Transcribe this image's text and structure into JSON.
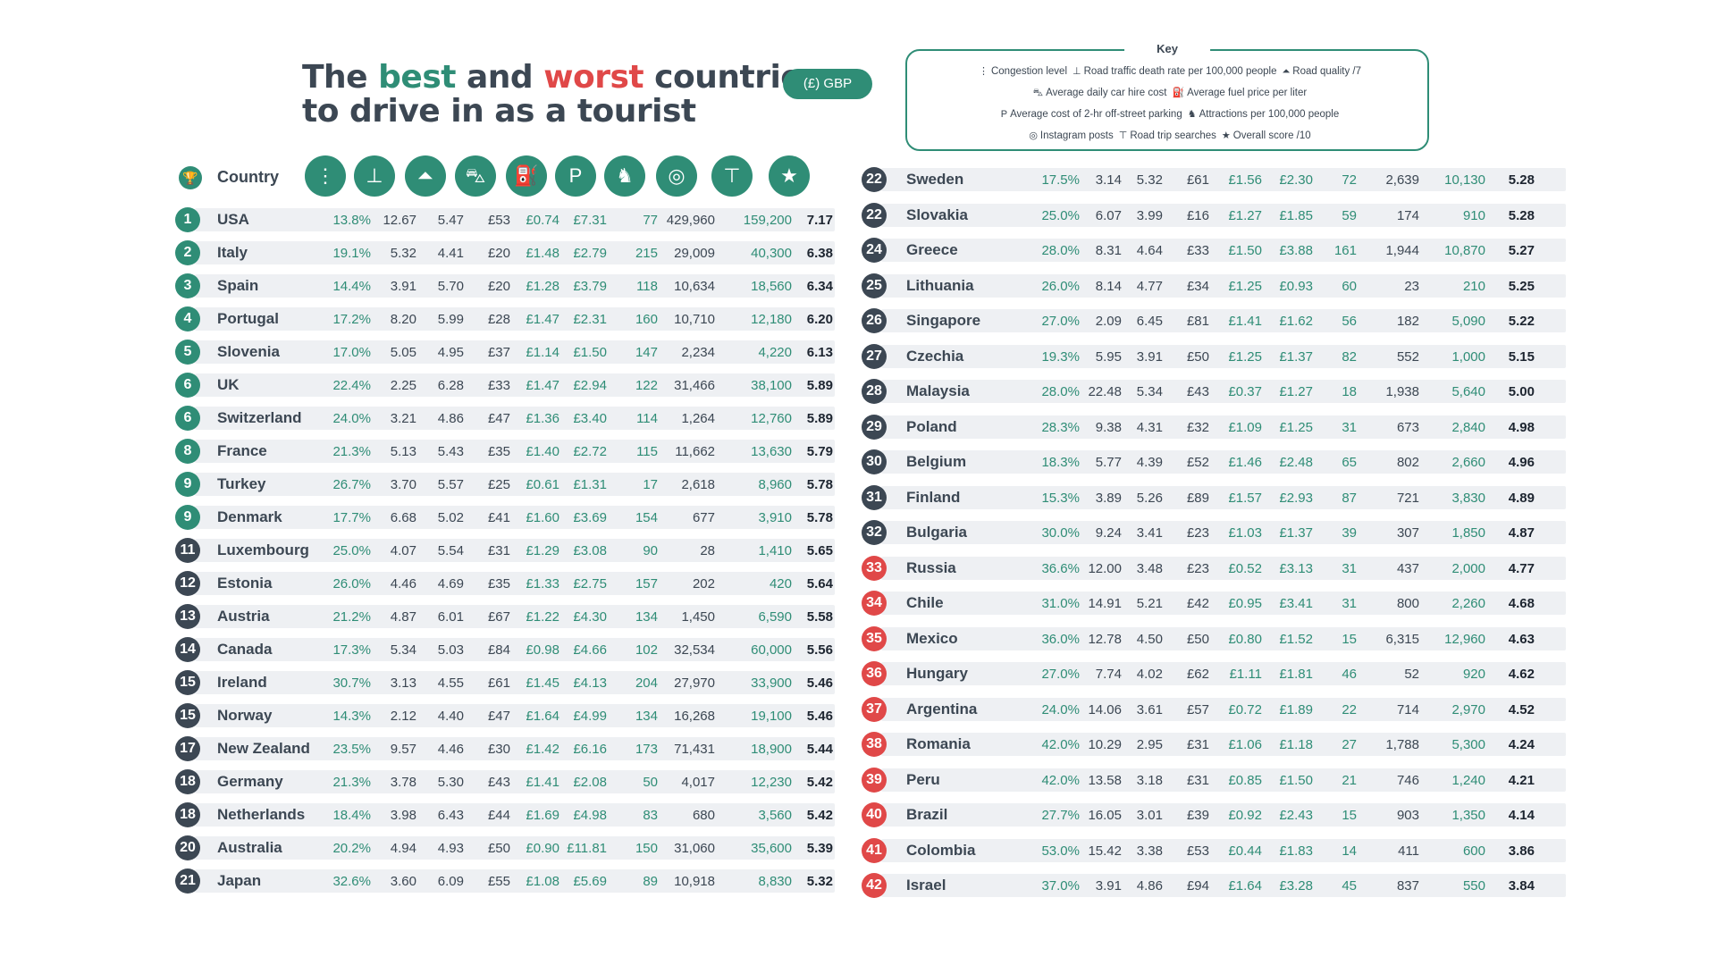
{
  "title": {
    "line1_a": "The ",
    "line1_best": "best",
    "line1_and": " and ",
    "line1_worst": "worst",
    "line1_end": " countries",
    "line2": "to drive in as a tourist"
  },
  "currency": "(£) GBP",
  "key": {
    "title": "Key",
    "items": [
      {
        "icon": "traffic-light-icon",
        "label": "Congestion level"
      },
      {
        "icon": "tombstone-icon",
        "label": "Road traffic death rate per 100,000 people"
      },
      {
        "icon": "road-icon",
        "label": "Road quality /7"
      },
      {
        "icon": "car-icon",
        "label": "Average daily car hire cost"
      },
      {
        "icon": "fuel-pump-icon",
        "label": "Average fuel price per liter"
      },
      {
        "icon": "parking-icon",
        "label": "Average cost of 2-hr off-street parking"
      },
      {
        "icon": "horse-icon",
        "label": "Attractions per 100,000 people"
      },
      {
        "icon": "instagram-icon",
        "label": "Instagram posts"
      },
      {
        "icon": "signpost-icon",
        "label": "Road trip searches"
      },
      {
        "icon": "star-icon",
        "label": "Overall score /10"
      }
    ]
  },
  "header": {
    "country_label": "Country",
    "icons": [
      "traffic-light-icon",
      "tombstone-icon",
      "road-icon",
      "car-icon",
      "fuel-pump-icon",
      "parking-icon",
      "horse-icon",
      "instagram-icon",
      "signpost-icon",
      "star-icon"
    ]
  },
  "colors": {
    "green": "#2f8d76",
    "navy": "#3c4753",
    "red": "#e04848"
  },
  "rows": [
    {
      "rank": "1",
      "country": "USA",
      "v": [
        "13.8%",
        "12.67",
        "5.47",
        "£53",
        "£0.74",
        "£7.31",
        "77",
        "429,960",
        "159,200",
        "7.17"
      ],
      "tone": "green"
    },
    {
      "rank": "2",
      "country": "Italy",
      "v": [
        "19.1%",
        "5.32",
        "4.41",
        "£20",
        "£1.48",
        "£2.79",
        "215",
        "29,009",
        "40,300",
        "6.38"
      ],
      "tone": "green"
    },
    {
      "rank": "3",
      "country": "Spain",
      "v": [
        "14.4%",
        "3.91",
        "5.70",
        "£20",
        "£1.28",
        "£3.79",
        "118",
        "10,634",
        "18,560",
        "6.34"
      ],
      "tone": "green"
    },
    {
      "rank": "4",
      "country": "Portugal",
      "v": [
        "17.2%",
        "8.20",
        "5.99",
        "£28",
        "£1.47",
        "£2.31",
        "160",
        "10,710",
        "12,180",
        "6.20"
      ],
      "tone": "green"
    },
    {
      "rank": "5",
      "country": "Slovenia",
      "v": [
        "17.0%",
        "5.05",
        "4.95",
        "£37",
        "£1.14",
        "£1.50",
        "147",
        "2,234",
        "4,220",
        "6.13"
      ],
      "tone": "green"
    },
    {
      "rank": "6",
      "country": "UK",
      "v": [
        "22.4%",
        "2.25",
        "6.28",
        "£33",
        "£1.47",
        "£2.94",
        "122",
        "31,466",
        "38,100",
        "5.89"
      ],
      "tone": "green"
    },
    {
      "rank": "6",
      "country": "Switzerland",
      "v": [
        "24.0%",
        "3.21",
        "4.86",
        "£47",
        "£1.36",
        "£3.40",
        "114",
        "1,264",
        "12,760",
        "5.89"
      ],
      "tone": "green"
    },
    {
      "rank": "8",
      "country": "France",
      "v": [
        "21.3%",
        "5.13",
        "5.43",
        "£35",
        "£1.40",
        "£2.72",
        "115",
        "11,662",
        "13,630",
        "5.79"
      ],
      "tone": "green"
    },
    {
      "rank": "9",
      "country": "Turkey",
      "v": [
        "26.7%",
        "3.70",
        "5.57",
        "£25",
        "£0.61",
        "£1.31",
        "17",
        "2,618",
        "8,960",
        "5.78"
      ],
      "tone": "green"
    },
    {
      "rank": "9",
      "country": "Denmark",
      "v": [
        "17.7%",
        "6.68",
        "5.02",
        "£41",
        "£1.60",
        "£3.69",
        "154",
        "677",
        "3,910",
        "5.78"
      ],
      "tone": "green"
    },
    {
      "rank": "11",
      "country": "Luxembourg",
      "v": [
        "25.0%",
        "4.07",
        "5.54",
        "£31",
        "£1.29",
        "£3.08",
        "90",
        "28",
        "1,410",
        "5.65"
      ],
      "tone": "navy"
    },
    {
      "rank": "12",
      "country": "Estonia",
      "v": [
        "26.0%",
        "4.46",
        "4.69",
        "£35",
        "£1.33",
        "£2.75",
        "157",
        "202",
        "420",
        "5.64"
      ],
      "tone": "navy"
    },
    {
      "rank": "13",
      "country": "Austria",
      "v": [
        "21.2%",
        "4.87",
        "6.01",
        "£67",
        "£1.22",
        "£4.30",
        "134",
        "1,450",
        "6,590",
        "5.58"
      ],
      "tone": "navy"
    },
    {
      "rank": "14",
      "country": "Canada",
      "v": [
        "17.3%",
        "5.34",
        "5.03",
        "£84",
        "£0.98",
        "£4.66",
        "102",
        "32,534",
        "60,000",
        "5.56"
      ],
      "tone": "navy"
    },
    {
      "rank": "15",
      "country": "Ireland",
      "v": [
        "30.7%",
        "3.13",
        "4.55",
        "£61",
        "£1.45",
        "£4.13",
        "204",
        "27,970",
        "33,900",
        "5.46"
      ],
      "tone": "navy"
    },
    {
      "rank": "15",
      "country": "Norway",
      "v": [
        "14.3%",
        "2.12",
        "4.40",
        "£47",
        "£1.64",
        "£4.99",
        "134",
        "16,268",
        "19,100",
        "5.46"
      ],
      "tone": "navy"
    },
    {
      "rank": "17",
      "country": "New Zealand",
      "v": [
        "23.5%",
        "9.57",
        "4.46",
        "£30",
        "£1.42",
        "£6.16",
        "173",
        "71,431",
        "18,900",
        "5.44"
      ],
      "tone": "navy"
    },
    {
      "rank": "18",
      "country": "Germany",
      "v": [
        "21.3%",
        "3.78",
        "5.30",
        "£43",
        "£1.41",
        "£2.08",
        "50",
        "4,017",
        "12,230",
        "5.42"
      ],
      "tone": "navy"
    },
    {
      "rank": "18",
      "country": "Netherlands",
      "v": [
        "18.4%",
        "3.98",
        "6.43",
        "£44",
        "£1.69",
        "£4.98",
        "83",
        "680",
        "3,560",
        "5.42"
      ],
      "tone": "navy"
    },
    {
      "rank": "20",
      "country": "Australia",
      "v": [
        "20.2%",
        "4.94",
        "4.93",
        "£50",
        "£0.90",
        "£11.81",
        "150",
        "31,060",
        "35,600",
        "5.39"
      ],
      "tone": "navy"
    },
    {
      "rank": "21",
      "country": "Japan",
      "v": [
        "32.6%",
        "3.60",
        "6.09",
        "£55",
        "£1.08",
        "£5.69",
        "89",
        "10,918",
        "8,830",
        "5.32"
      ],
      "tone": "navy"
    },
    {
      "rank": "22",
      "country": "Sweden",
      "v": [
        "17.5%",
        "3.14",
        "5.32",
        "£61",
        "£1.56",
        "£2.30",
        "72",
        "2,639",
        "10,130",
        "5.28"
      ],
      "tone": "navy"
    },
    {
      "rank": "22",
      "country": "Slovakia",
      "v": [
        "25.0%",
        "6.07",
        "3.99",
        "£16",
        "£1.27",
        "£1.85",
        "59",
        "174",
        "910",
        "5.28"
      ],
      "tone": "navy"
    },
    {
      "rank": "24",
      "country": "Greece",
      "v": [
        "28.0%",
        "8.31",
        "4.64",
        "£33",
        "£1.50",
        "£3.88",
        "161",
        "1,944",
        "10,870",
        "5.27"
      ],
      "tone": "navy"
    },
    {
      "rank": "25",
      "country": "Lithuania",
      "v": [
        "26.0%",
        "8.14",
        "4.77",
        "£34",
        "£1.25",
        "£0.93",
        "60",
        "23",
        "210",
        "5.25"
      ],
      "tone": "navy"
    },
    {
      "rank": "26",
      "country": "Singapore",
      "v": [
        "27.0%",
        "2.09",
        "6.45",
        "£81",
        "£1.41",
        "£1.62",
        "56",
        "182",
        "5,090",
        "5.22"
      ],
      "tone": "navy"
    },
    {
      "rank": "27",
      "country": "Czechia",
      "v": [
        "19.3%",
        "5.95",
        "3.91",
        "£50",
        "£1.25",
        "£1.37",
        "82",
        "552",
        "1,000",
        "5.15"
      ],
      "tone": "navy"
    },
    {
      "rank": "28",
      "country": "Malaysia",
      "v": [
        "28.0%",
        "22.48",
        "5.34",
        "£43",
        "£0.37",
        "£1.27",
        "18",
        "1,938",
        "5,640",
        "5.00"
      ],
      "tone": "navy"
    },
    {
      "rank": "29",
      "country": "Poland",
      "v": [
        "28.3%",
        "9.38",
        "4.31",
        "£32",
        "£1.09",
        "£1.25",
        "31",
        "673",
        "2,840",
        "4.98"
      ],
      "tone": "navy"
    },
    {
      "rank": "30",
      "country": "Belgium",
      "v": [
        "18.3%",
        "5.77",
        "4.39",
        "£52",
        "£1.46",
        "£2.48",
        "65",
        "802",
        "2,660",
        "4.96"
      ],
      "tone": "navy"
    },
    {
      "rank": "31",
      "country": "Finland",
      "v": [
        "15.3%",
        "3.89",
        "5.26",
        "£89",
        "£1.57",
        "£2.93",
        "87",
        "721",
        "3,830",
        "4.89"
      ],
      "tone": "navy"
    },
    {
      "rank": "32",
      "country": "Bulgaria",
      "v": [
        "30.0%",
        "9.24",
        "3.41",
        "£23",
        "£1.03",
        "£1.37",
        "39",
        "307",
        "1,850",
        "4.87"
      ],
      "tone": "navy"
    },
    {
      "rank": "33",
      "country": "Russia",
      "v": [
        "36.6%",
        "12.00",
        "3.48",
        "£23",
        "£0.52",
        "£3.13",
        "31",
        "437",
        "2,000",
        "4.77"
      ],
      "tone": "red"
    },
    {
      "rank": "34",
      "country": "Chile",
      "v": [
        "31.0%",
        "14.91",
        "5.21",
        "£42",
        "£0.95",
        "£3.41",
        "31",
        "800",
        "2,260",
        "4.68"
      ],
      "tone": "red"
    },
    {
      "rank": "35",
      "country": "Mexico",
      "v": [
        "36.0%",
        "12.78",
        "4.50",
        "£50",
        "£0.80",
        "£1.52",
        "15",
        "6,315",
        "12,960",
        "4.63"
      ],
      "tone": "red"
    },
    {
      "rank": "36",
      "country": "Hungary",
      "v": [
        "27.0%",
        "7.74",
        "4.02",
        "£62",
        "£1.11",
        "£1.81",
        "46",
        "52",
        "920",
        "4.62"
      ],
      "tone": "red"
    },
    {
      "rank": "37",
      "country": "Argentina",
      "v": [
        "24.0%",
        "14.06",
        "3.61",
        "£57",
        "£0.72",
        "£1.89",
        "22",
        "714",
        "2,970",
        "4.52"
      ],
      "tone": "red"
    },
    {
      "rank": "38",
      "country": "Romania",
      "v": [
        "42.0%",
        "10.29",
        "2.95",
        "£31",
        "£1.06",
        "£1.18",
        "27",
        "1,788",
        "5,300",
        "4.24"
      ],
      "tone": "red"
    },
    {
      "rank": "39",
      "country": "Peru",
      "v": [
        "42.0%",
        "13.58",
        "3.18",
        "£31",
        "£0.85",
        "£1.50",
        "21",
        "746",
        "1,240",
        "4.21"
      ],
      "tone": "red"
    },
    {
      "rank": "40",
      "country": "Brazil",
      "v": [
        "27.7%",
        "16.05",
        "3.01",
        "£39",
        "£0.92",
        "£2.43",
        "15",
        "903",
        "1,350",
        "4.14"
      ],
      "tone": "red"
    },
    {
      "rank": "41",
      "country": "Colombia",
      "v": [
        "53.0%",
        "15.42",
        "3.38",
        "£53",
        "£0.44",
        "£1.83",
        "14",
        "411",
        "600",
        "3.86"
      ],
      "tone": "red"
    },
    {
      "rank": "42",
      "country": "Israel",
      "v": [
        "37.0%",
        "3.91",
        "4.86",
        "£94",
        "£1.64",
        "£3.28",
        "45",
        "837",
        "550",
        "3.84"
      ],
      "tone": "red"
    }
  ]
}
